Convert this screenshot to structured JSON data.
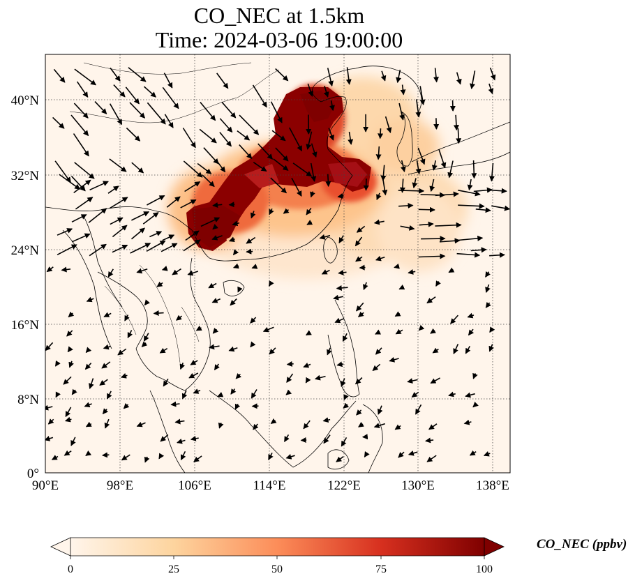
{
  "title_line1": "CO_NEC at 1.5km",
  "title_line2": "Time: 2024-03-06 19:00:00",
  "map": {
    "lon_range": [
      90,
      140
    ],
    "lat_range": [
      0,
      45
    ],
    "lon_ticks": [
      "90°E",
      "98°E",
      "106°E",
      "114°E",
      "122°E",
      "130°E",
      "138°E"
    ],
    "lat_ticks": [
      "0°",
      "8°N",
      "16°N",
      "24°N",
      "32°N",
      "40°N"
    ],
    "gridlines": true
  },
  "colorbar": {
    "label": "CO_NEC (ppbv)",
    "ticks": [
      "0",
      "25",
      "50",
      "75",
      "100"
    ],
    "range": [
      0,
      100
    ],
    "extend": "both",
    "colors": {
      "low": "#fff5eb",
      "mid1": "#fdd49e",
      "mid2": "#fc8d59",
      "mid3": "#d7301f",
      "high": "#7f0000"
    }
  }
}
